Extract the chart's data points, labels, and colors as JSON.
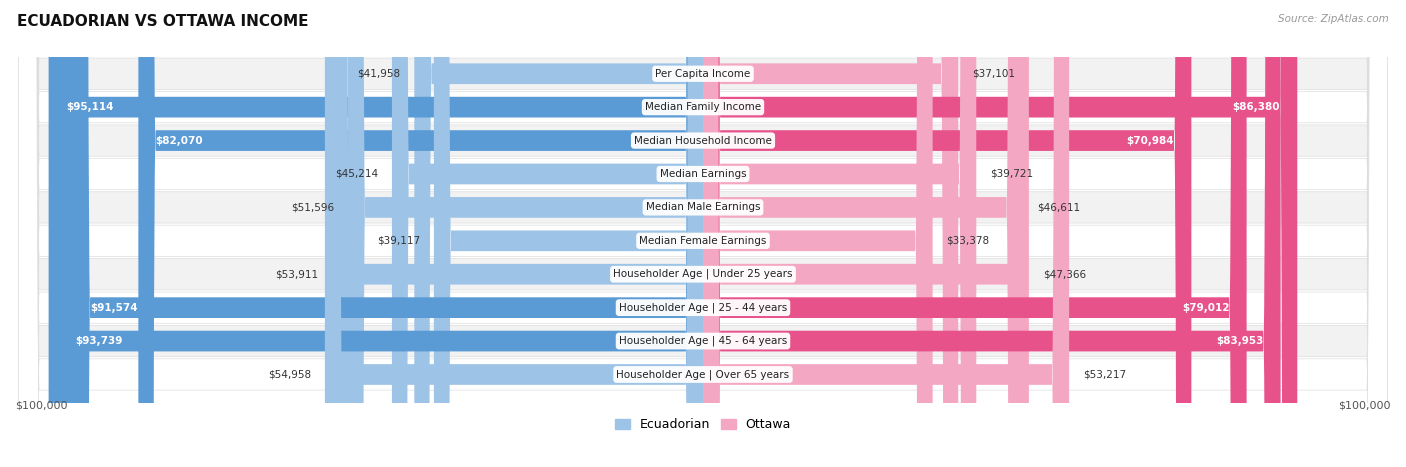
{
  "title": "ECUADORIAN VS OTTAWA INCOME",
  "source": "Source: ZipAtlas.com",
  "categories": [
    "Per Capita Income",
    "Median Family Income",
    "Median Household Income",
    "Median Earnings",
    "Median Male Earnings",
    "Median Female Earnings",
    "Householder Age | Under 25 years",
    "Householder Age | 25 - 44 years",
    "Householder Age | 45 - 64 years",
    "Householder Age | Over 65 years"
  ],
  "ecuadorian": [
    41958,
    95114,
    82070,
    45214,
    51596,
    39117,
    53911,
    91574,
    93739,
    54958
  ],
  "ottawa": [
    37101,
    86380,
    70984,
    39721,
    46611,
    33378,
    47366,
    79012,
    83953,
    53217
  ],
  "max_value": 100000,
  "ecu_color_large": "#5b9bd5",
  "ecu_color_small": "#9dc3e6",
  "ott_color_large": "#e8528a",
  "ott_color_small": "#f4a7c3",
  "row_bg_even": "#f2f2f2",
  "row_bg_odd": "#ffffff",
  "title_fontsize": 11,
  "source_fontsize": 7.5,
  "value_fontsize": 7.5,
  "label_fontsize": 7.5,
  "axis_label_fontsize": 8,
  "legend_fontsize": 9,
  "inside_threshold": 60000
}
